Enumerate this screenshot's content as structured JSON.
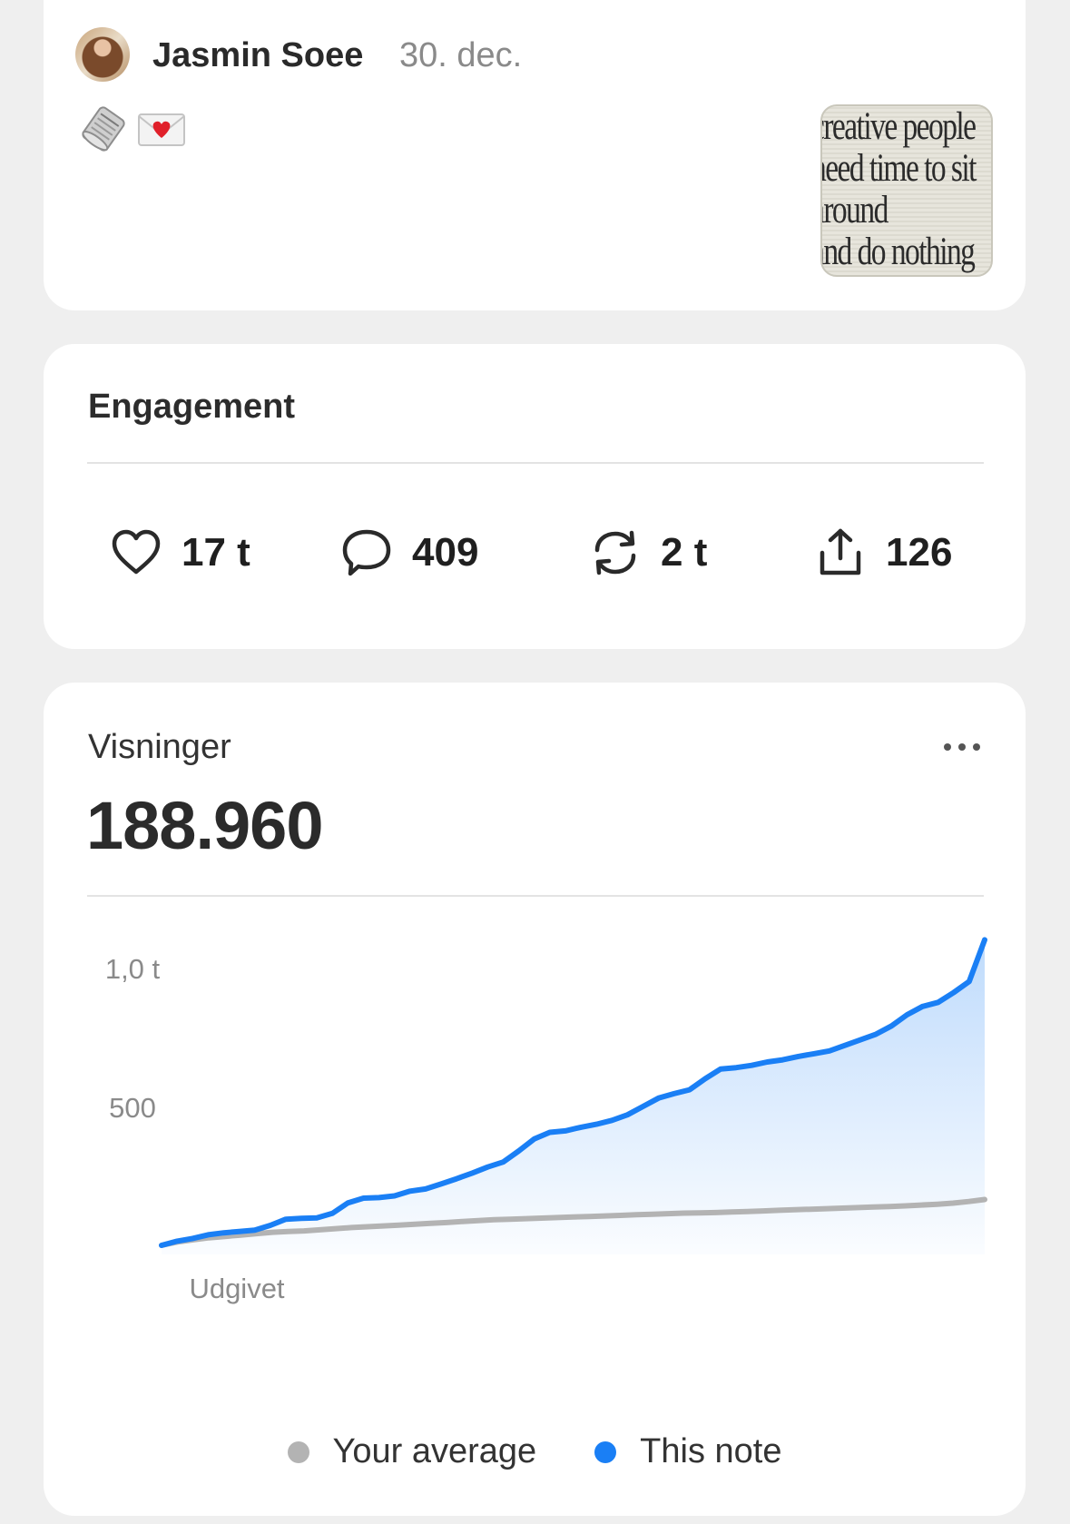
{
  "post": {
    "author": "Jasmin Soee",
    "date": "30. dec.",
    "emojis": [
      "newspaper-roll-icon",
      "love-letter-icon"
    ],
    "thumbnail_text": [
      "creative people",
      "need time to sit",
      "around",
      "and do nothing"
    ]
  },
  "engagement": {
    "title": "Engagement",
    "likes": "17 t",
    "comments": "409",
    "restacks": "2 t",
    "shares": "126"
  },
  "views": {
    "label": "Visninger",
    "total": "188.960",
    "more_icon": "ellipsis-icon"
  },
  "chart_data": {
    "type": "area",
    "y_tick_labels": [
      "1,0 t",
      "500"
    ],
    "y_tick_values": [
      1000,
      500
    ],
    "x_label": "Udgivet",
    "ylim": [
      0,
      1100
    ],
    "grid": false,
    "legend_position": "bottom",
    "series": [
      {
        "name": "Your average",
        "color": "#b3b3b3",
        "values": [
          0,
          12,
          20,
          27,
          32,
          37,
          42,
          47,
          50,
          52,
          56,
          60,
          64,
          67,
          70,
          73,
          76,
          79,
          82,
          86,
          89,
          92,
          94,
          96,
          98,
          100,
          102,
          104,
          106,
          108,
          110,
          112,
          114,
          116,
          117,
          118,
          120,
          122,
          124,
          126,
          128,
          130,
          132,
          134,
          136,
          138,
          140,
          142,
          145,
          148,
          152,
          158,
          165
        ]
      },
      {
        "name": "This note",
        "color": "#1a7ff5",
        "values": [
          0,
          15,
          25,
          38,
          45,
          50,
          55,
          72,
          94,
          97,
          99,
          115,
          153,
          170,
          172,
          178,
          195,
          203,
          221,
          240,
          260,
          282,
          300,
          340,
          383,
          407,
          412,
          425,
          436,
          450,
          470,
          500,
          530,
          546,
          560,
          600,
          635,
          640,
          648,
          660,
          668,
          680,
          690,
          700,
          720,
          740,
          760,
          790,
          830,
          860,
          875,
          910,
          950,
          1100
        ]
      }
    ]
  },
  "colors": {
    "accent": "#1a7ff5",
    "average": "#b3b3b3",
    "background": "#efefef",
    "card": "#ffffff"
  }
}
